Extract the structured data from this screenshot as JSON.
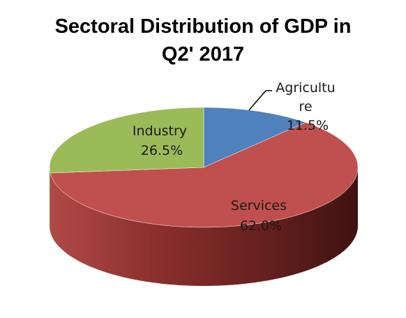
{
  "chart_data": {
    "type": "pie",
    "title_lines": [
      "Sectoral Distribution of GDP in",
      "Q2' 2017"
    ],
    "slices": [
      {
        "name": "Agriculture",
        "label_lines": [
          "Agricultu",
          "re"
        ],
        "value_label": "11.5%",
        "value": 11.5,
        "color": "#4f81bd"
      },
      {
        "name": "Services",
        "label_lines": [
          "Services"
        ],
        "value_label": "62.0%",
        "value": 62.0,
        "color": "#c0504d"
      },
      {
        "name": "Industry",
        "label_lines": [
          "Industry"
        ],
        "value_label": "26.5%",
        "value": 26.5,
        "color": "#9bbb59"
      }
    ],
    "legend": "none",
    "style": "3d"
  }
}
